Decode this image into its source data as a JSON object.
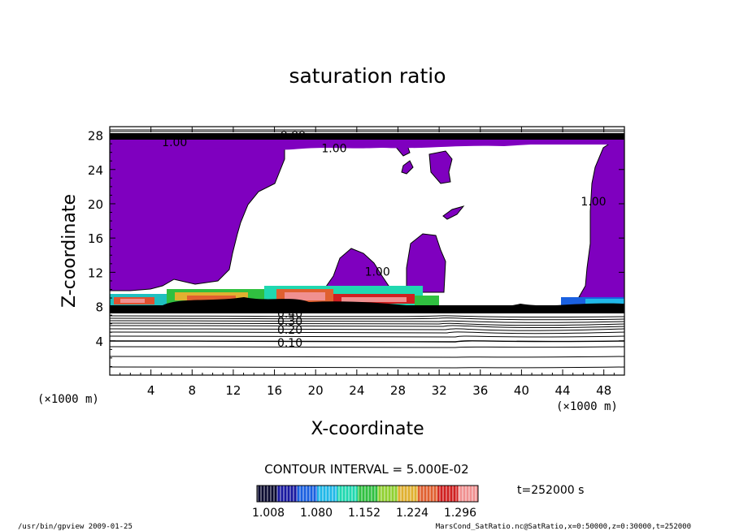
{
  "chart_data": {
    "type": "heatmap",
    "title": "saturation ratio",
    "xlabel": "X-coordinate",
    "ylabel": "Z-coordinate",
    "x_unit": "(×1000 m)",
    "y_unit": "(×1000 m)",
    "xlim": [
      0,
      50
    ],
    "ylim": [
      0,
      29
    ],
    "x_ticks": [
      4,
      8,
      12,
      16,
      20,
      24,
      28,
      32,
      36,
      40,
      44,
      48
    ],
    "y_ticks": [
      4,
      8,
      12,
      16,
      20,
      24,
      28
    ],
    "contour_interval_text": "CONTOUR INTERVAL = 5.000E-02",
    "time_text": "t=252000 s",
    "colorbar": {
      "labels": [
        "1.008",
        "1.080",
        "1.152",
        "1.224",
        "1.296"
      ],
      "colors": [
        "#0a0a30",
        "#1818a0",
        "#1a60e0",
        "#20b8e8",
        "#20d8b0",
        "#30c040",
        "#90d030",
        "#e0b030",
        "#e06030",
        "#d02020",
        "#f09090"
      ]
    },
    "saturated_fill_color": "#7f00bf",
    "contour_labels": [
      {
        "text": "1.00",
        "x": 6.3,
        "z": 27.2
      },
      {
        "text": "0.00",
        "x": 17.8,
        "z": 28.0
      },
      {
        "text": "1.00",
        "x": 21.8,
        "z": 26.5
      },
      {
        "text": "1.00",
        "x": 26.0,
        "z": 12.1
      },
      {
        "text": "1.00",
        "x": 47.0,
        "z": 20.3
      },
      {
        "text": "0.40",
        "x": 17.5,
        "z": 7.2
      },
      {
        "text": "0.30",
        "x": 17.5,
        "z": 6.3
      },
      {
        "text": "0.20",
        "x": 17.5,
        "z": 5.3
      },
      {
        "text": "0.10",
        "x": 17.5,
        "z": 3.8
      }
    ],
    "saturation_contour_levels": [
      0.1,
      0.2,
      0.3,
      0.4,
      1.0
    ]
  },
  "footer": {
    "left": "/usr/bin/gpview  2009-01-25",
    "right": "MarsCond_SatRatio.nc@SatRatio,x=0:50000,z=0:30000,t=252000"
  }
}
